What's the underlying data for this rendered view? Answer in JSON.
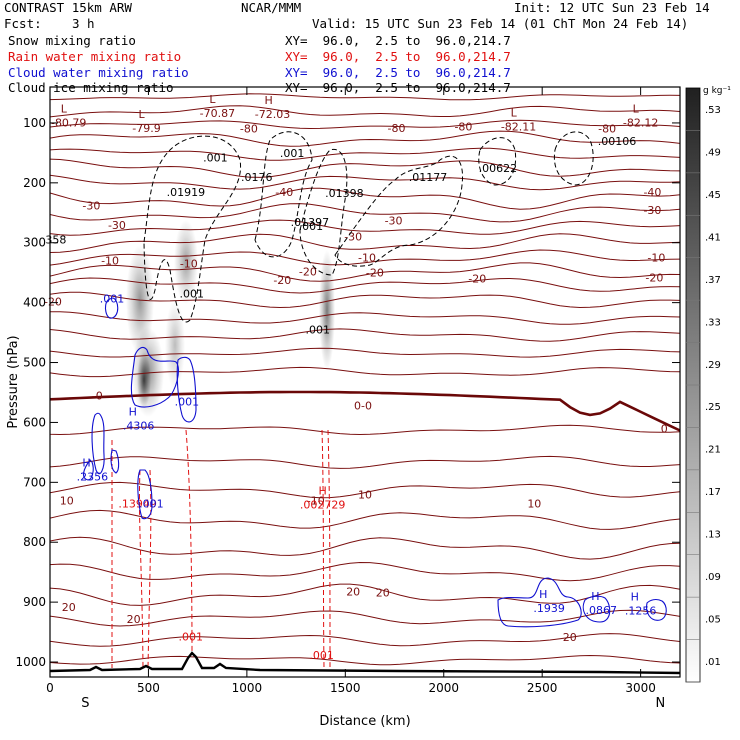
{
  "header": {
    "model": "CONTRAST 15km ARW",
    "org": "NCAR/MMM",
    "init": "Init: 12 UTC Sun 23 Feb 14",
    "fcst_label": "Fcst:",
    "fcst_value": "3 h",
    "valid": "Valid: 15 UTC Sun 23 Feb 14 (01 ChT Mon 24 Feb 14)",
    "fields": [
      {
        "name": "Snow mixing ratio",
        "xy": "XY=  96.0,  2.5 to  96.0,214.7",
        "color": "#000000"
      },
      {
        "name": "Rain water mixing ratio",
        "xy": "XY=  96.0,  2.5 to  96.0,214.7",
        "color": "#e01010"
      },
      {
        "name": "Cloud water mixing ratio",
        "xy": "XY=  96.0,  2.5 to  96.0,214.7",
        "color": "#1010d0"
      },
      {
        "name": "Cloud ice mixing ratio",
        "xy": "XY=  96.0,  2.5 to  96.0,214.7",
        "color": "#000000"
      }
    ]
  },
  "chart_data": {
    "type": "cross-section",
    "xlabel": "Distance (km)",
    "ylabel": "Pressure (hPa)",
    "xlim": [
      0,
      3200
    ],
    "ylim": [
      1025,
      40
    ],
    "x_ticks": [
      0,
      500,
      1000,
      1500,
      2000,
      2500,
      3000
    ],
    "x_tick_labels": [
      "0",
      "500",
      "1000",
      "1500",
      "2000",
      "2500",
      "3000"
    ],
    "y_ticks": [
      100,
      200,
      300,
      400,
      500,
      600,
      700,
      800,
      900,
      1000
    ],
    "y_tick_labels": [
      "100",
      "200",
      "300",
      "400",
      "500",
      "600",
      "700",
      "800",
      "900",
      "1000"
    ],
    "endpoints": {
      "left": "S",
      "right": "N"
    },
    "colorbar": {
      "unit": "g kg⁻¹",
      "labels": [
        ".53",
        ".49",
        ".45",
        ".41",
        ".37",
        ".33",
        ".29",
        ".25",
        ".21",
        ".17",
        ".13",
        ".09",
        ".05",
        ".01"
      ]
    },
    "temperature_labels": [
      {
        "x": 15,
        "p": 398,
        "t": "-20"
      },
      {
        "x": 305,
        "p": 330,
        "t": "-10"
      },
      {
        "x": 705,
        "p": 335,
        "t": "-10"
      },
      {
        "x": 1610,
        "p": 325,
        "t": "-10"
      },
      {
        "x": 3080,
        "p": 325,
        "t": "-10"
      },
      {
        "x": 210,
        "p": 238,
        "t": "-30"
      },
      {
        "x": 340,
        "p": 270,
        "t": "-30"
      },
      {
        "x": 1190,
        "p": 215,
        "t": "-40"
      },
      {
        "x": 3060,
        "p": 215,
        "t": "-40"
      },
      {
        "x": 1540,
        "p": 290,
        "t": "-30"
      },
      {
        "x": 1745,
        "p": 263,
        "t": "-30"
      },
      {
        "x": 3060,
        "p": 245,
        "t": "-30"
      },
      {
        "x": 1310,
        "p": 348,
        "t": "-20"
      },
      {
        "x": 1180,
        "p": 362,
        "t": "-20"
      },
      {
        "x": 1650,
        "p": 350,
        "t": "-20"
      },
      {
        "x": 2170,
        "p": 360,
        "t": "-20"
      },
      {
        "x": 3070,
        "p": 358,
        "t": "-20"
      },
      {
        "x": 240,
        "p": 555,
        "t": "-0"
      },
      {
        "x": 1590,
        "p": 572,
        "t": "0-0"
      },
      {
        "x": 3120,
        "p": 610,
        "t": "0"
      },
      {
        "x": 85,
        "p": 730,
        "t": "10"
      },
      {
        "x": 1600,
        "p": 720,
        "t": "10"
      },
      {
        "x": 1350,
        "p": 730,
        "t": "-10"
      },
      {
        "x": 2460,
        "p": 735,
        "t": "10"
      },
      {
        "x": 95,
        "p": 908,
        "t": "20"
      },
      {
        "x": 1540,
        "p": 882,
        "t": "20"
      },
      {
        "x": 1690,
        "p": 884,
        "t": "20"
      },
      {
        "x": 425,
        "p": 928,
        "t": "20"
      },
      {
        "x": 2640,
        "p": 958,
        "t": "20"
      }
    ],
    "upper_extrema": [
      {
        "x": 95,
        "p": 86,
        "m": "L",
        "v": "-80.79"
      },
      {
        "x": 490,
        "p": 95,
        "m": "L",
        "v": "-79.9"
      },
      {
        "x": 850,
        "p": 70,
        "m": "L",
        "v": "-70.87"
      },
      {
        "x": 1130,
        "p": 72,
        "m": "H",
        "v": "-72.03"
      },
      {
        "x": 1010,
        "p": 96,
        "m": "",
        "v": "-80"
      },
      {
        "x": 2100,
        "p": 93,
        "m": "",
        "v": "-80"
      },
      {
        "x": 2380,
        "p": 93,
        "m": "L",
        "v": "-82.11"
      },
      {
        "x": 2830,
        "p": 96,
        "m": "",
        "v": "-80"
      },
      {
        "x": 3000,
        "p": 86,
        "m": "L",
        "v": "-82.12"
      },
      {
        "x": 1760,
        "p": 95,
        "m": "",
        "v": "-80"
      }
    ],
    "snow_labels": [
      {
        "x": 840,
        "p": 158,
        "t": ".001"
      },
      {
        "x": 1230,
        "p": 150,
        "t": ".001"
      },
      {
        "x": 690,
        "p": 215,
        "t": ".01919"
      },
      {
        "x": 1050,
        "p": 190,
        "t": ".0176"
      },
      {
        "x": 1495,
        "p": 217,
        "t": ".01398"
      },
      {
        "x": 1920,
        "p": 190,
        "t": ".01177"
      },
      {
        "x": 2275,
        "p": 175,
        "t": ".00622"
      },
      {
        "x": 2880,
        "p": 130,
        "t": ".00106"
      },
      {
        "x": 1320,
        "p": 265,
        "t": ".01397"
      },
      {
        "x": 1325,
        "p": 272,
        "t": ".001"
      },
      {
        "x": 1360,
        "p": 445,
        "t": ".001"
      },
      {
        "x": 720,
        "p": 385,
        "t": ".001"
      },
      {
        "x": 30,
        "p": 295,
        "t": "358"
      }
    ],
    "cloud_water_extrema": [
      {
        "x": 450,
        "p": 605,
        "m": "H",
        "v": ".4306"
      },
      {
        "x": 215,
        "p": 690,
        "m": "H",
        "v": ".2356"
      },
      {
        "x": 2535,
        "p": 910,
        "m": "H",
        "v": ".1939"
      },
      {
        "x": 2800,
        "p": 913,
        "m": "H",
        "v": ".0867"
      },
      {
        "x": 3000,
        "p": 914,
        "m": "H",
        "v": ".1256"
      }
    ],
    "cloud_water_labels": [
      {
        "x": 315,
        "p": 393,
        "t": ".001"
      },
      {
        "x": 695,
        "p": 565,
        "t": ".001"
      },
      {
        "x": 515,
        "p": 735,
        "t": ".001"
      }
    ],
    "rain_extrema": [
      {
        "x": 445,
        "p": 735,
        "m": "",
        "v": ".13949"
      },
      {
        "x": 1385,
        "p": 737,
        "m": "H",
        "v": ".002729"
      }
    ],
    "rain_labels": [
      {
        "x": 715,
        "p": 957,
        "t": ".001"
      },
      {
        "x": 1380,
        "p": 988,
        "t": ".001"
      }
    ]
  }
}
